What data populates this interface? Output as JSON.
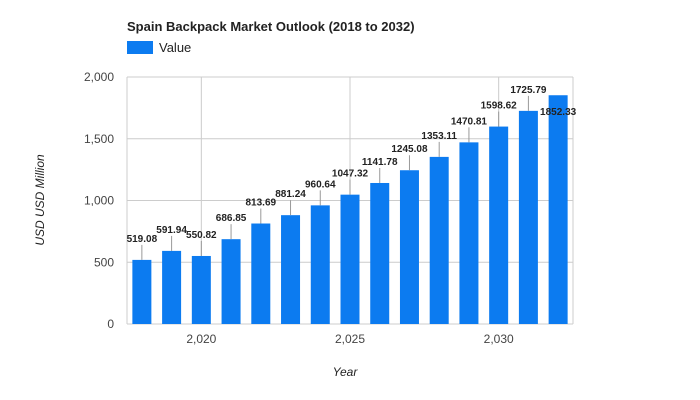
{
  "chart_data": {
    "type": "bar",
    "title": "Spain Backpack Market Outlook (2018 to 2032)",
    "xlabel": "Year",
    "ylabel": "USD USD Million",
    "legend": {
      "position": "top-left",
      "entries": [
        "Value"
      ]
    },
    "colors": {
      "bar": "#0c7bf0"
    },
    "ylim": [
      0,
      2000
    ],
    "yticks": [
      "0",
      "500",
      "1,000",
      "1,500",
      "2,000"
    ],
    "ytick_values": [
      0,
      500,
      1000,
      1500,
      2000
    ],
    "xticks": [
      "2,020",
      "2,025",
      "2,030"
    ],
    "xtick_values": [
      2020,
      2025,
      2030
    ],
    "grid": true,
    "x": [
      2018,
      2019,
      2020,
      2021,
      2022,
      2023,
      2024,
      2025,
      2026,
      2027,
      2028,
      2029,
      2030,
      2031,
      2032
    ],
    "series": [
      {
        "name": "Value",
        "values": [
          519.08,
          591.94,
          550.82,
          686.85,
          813.69,
          881.24,
          960.64,
          1047.32,
          1141.78,
          1245.08,
          1353.11,
          1470.81,
          1598.62,
          1725.79,
          1852.33
        ],
        "labels": [
          "519.08",
          "591.94",
          "550.82",
          "686.85",
          "813.69",
          "881.24",
          "960.64",
          "1047.32",
          "1141.78",
          "1245.08",
          "1353.11",
          "1470.81",
          "1598.62",
          "1725.79",
          "1852.33"
        ]
      }
    ]
  }
}
